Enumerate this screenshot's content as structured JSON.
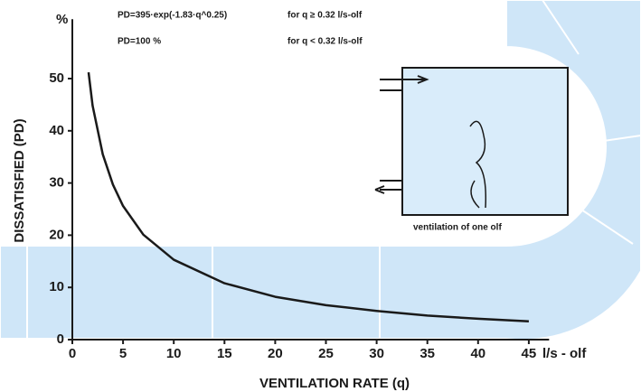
{
  "chart_data": {
    "type": "line",
    "y_unit": "%",
    "y_label": "DISSATISFIED (PD)",
    "x_label": "VENTILATION RATE (q)",
    "x_unit": "l/s - olf",
    "annotations": [
      "PD=395·exp(-1.83·q^0.25)",
      "for q ≥ 0.32 l/s-olf",
      "PD=100 %",
      "for q < 0.32 l/s-olf",
      "ventilation of one olf"
    ],
    "x": [
      1.6,
      2,
      3,
      4,
      5,
      7,
      10,
      15,
      20,
      25,
      30,
      35,
      40,
      45
    ],
    "values": [
      51.2,
      44.8,
      35.5,
      29.7,
      25.6,
      20.1,
      15.3,
      10.8,
      8.2,
      6.6,
      5.5,
      4.6,
      4.0,
      3.5
    ],
    "color": "#1a1a1a",
    "xlim": [
      0,
      47
    ],
    "ylim": [
      0,
      60
    ],
    "xticks": [
      0,
      5,
      10,
      15,
      20,
      25,
      30,
      35,
      40,
      45
    ],
    "yticks": [
      0,
      10,
      20,
      30,
      40,
      50
    ]
  }
}
